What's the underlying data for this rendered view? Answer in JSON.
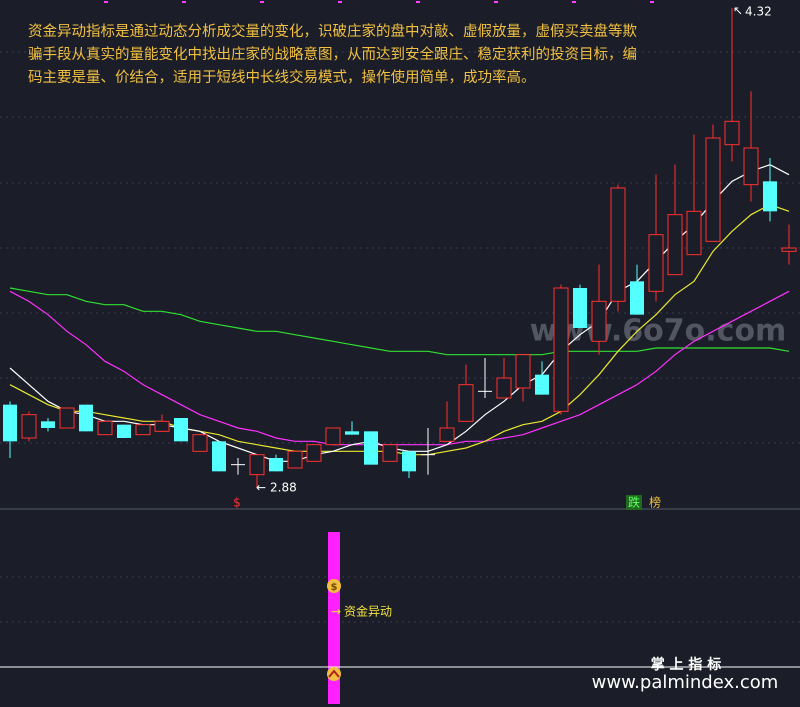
{
  "chart_data": {
    "type": "candlestick",
    "description": [
      "资金异动指标是通过动态分析成交量的变化，识破庄家的盘中对敲、虚假放量，虚假买卖盘等欺",
      "骗手段从真实的量能变化中找出庄家的战略意图，从而达到安全跟庄、稳定获利的投资目标，编",
      "码主要是量、价结合，适用于短线中长线交易模式，操作使用简单，成功率高。"
    ],
    "ylim": [
      2.82,
      4.344
    ],
    "up_color": "#ff3030",
    "down_color": "#54ffff",
    "candles": [
      [
        3.13,
        3.14,
        2.97,
        3.02
      ],
      [
        3.03,
        3.11,
        3.02,
        3.1
      ],
      [
        3.08,
        3.09,
        3.05,
        3.06
      ],
      [
        3.06,
        3.12,
        3.06,
        3.12
      ],
      [
        3.13,
        3.13,
        3.05,
        3.05
      ],
      [
        3.04,
        3.08,
        3.04,
        3.08
      ],
      [
        3.07,
        3.07,
        3.03,
        3.03
      ],
      [
        3.04,
        3.07,
        3.04,
        3.07
      ],
      [
        3.05,
        3.1,
        3.05,
        3.08
      ],
      [
        3.09,
        3.09,
        3.02,
        3.02
      ],
      [
        2.99,
        3.04,
        2.99,
        3.04
      ],
      [
        3.02,
        3.02,
        2.93,
        2.93
      ],
      [
        2.95,
        2.97,
        2.92,
        2.95
      ],
      [
        2.92,
        2.98,
        2.88,
        2.98
      ],
      [
        2.97,
        2.98,
        2.93,
        2.93
      ],
      [
        2.94,
        2.99,
        2.94,
        2.99
      ],
      [
        2.96,
        3.01,
        2.96,
        3.01
      ],
      [
        3.01,
        3.06,
        3.01,
        3.06
      ],
      [
        3.05,
        3.08,
        3.04,
        3.04
      ],
      [
        3.05,
        3.05,
        2.95,
        2.95
      ],
      [
        2.96,
        3.01,
        2.96,
        3.01
      ],
      [
        2.99,
        2.99,
        2.91,
        2.93
      ],
      [
        2.98,
        3.06,
        2.92,
        2.98
      ],
      [
        3.02,
        3.14,
        3.02,
        3.06
      ],
      [
        3.08,
        3.25,
        3.08,
        3.19
      ],
      [
        3.17,
        3.27,
        3.15,
        3.17
      ],
      [
        3.15,
        3.27,
        3.15,
        3.21
      ],
      [
        3.18,
        3.28,
        3.14,
        3.28
      ],
      [
        3.22,
        3.26,
        3.16,
        3.16
      ],
      [
        3.11,
        3.49,
        3.1,
        3.48
      ],
      [
        3.48,
        3.49,
        3.36,
        3.36
      ],
      [
        3.32,
        3.55,
        3.28,
        3.44
      ],
      [
        3.44,
        3.79,
        3.41,
        3.78
      ],
      [
        3.5,
        3.55,
        3.4,
        3.4
      ],
      [
        3.47,
        3.82,
        3.44,
        3.64
      ],
      [
        3.52,
        3.85,
        3.52,
        3.7
      ],
      [
        3.58,
        3.94,
        3.58,
        3.71
      ],
      [
        3.62,
        3.97,
        3.62,
        3.93
      ],
      [
        3.91,
        4.32,
        3.86,
        3.98
      ],
      [
        3.79,
        4.07,
        3.74,
        3.9
      ],
      [
        3.8,
        3.87,
        3.68,
        3.71
      ],
      [
        3.59,
        3.67,
        3.55,
        3.6
      ]
    ],
    "series": [
      {
        "color": "#ffffff",
        "values": [
          3.24,
          3.19,
          3.14,
          3.11,
          3.1,
          3.08,
          3.08,
          3.07,
          3.07,
          3.06,
          3.05,
          3.02,
          3.0,
          2.98,
          2.96,
          2.96,
          2.98,
          2.99,
          3.01,
          3.02,
          3.0,
          2.99,
          2.99,
          3.01,
          3.05,
          3.1,
          3.14,
          3.19,
          3.22,
          3.29,
          3.34,
          3.38,
          3.47,
          3.5,
          3.56,
          3.62,
          3.67,
          3.74,
          3.8,
          3.83,
          3.85,
          3.82
        ]
      },
      {
        "color": "#e8e830",
        "values": [
          3.19,
          3.16,
          3.13,
          3.11,
          3.11,
          3.1,
          3.09,
          3.08,
          3.08,
          3.06,
          3.05,
          3.04,
          3.02,
          3.01,
          3.0,
          2.99,
          2.99,
          2.99,
          2.99,
          2.99,
          2.99,
          2.98,
          2.98,
          2.99,
          3.0,
          3.02,
          3.05,
          3.07,
          3.08,
          3.11,
          3.16,
          3.22,
          3.29,
          3.35,
          3.4,
          3.46,
          3.5,
          3.59,
          3.65,
          3.7,
          3.73,
          3.71
        ]
      },
      {
        "color": "#ff30ff",
        "values": [
          3.47,
          3.44,
          3.4,
          3.35,
          3.31,
          3.26,
          3.23,
          3.19,
          3.16,
          3.13,
          3.1,
          3.08,
          3.06,
          3.05,
          3.03,
          3.02,
          3.02,
          3.01,
          3.01,
          3.01,
          3.01,
          3.01,
          3.01,
          3.01,
          3.02,
          3.02,
          3.03,
          3.04,
          3.06,
          3.08,
          3.1,
          3.13,
          3.16,
          3.19,
          3.23,
          3.28,
          3.32,
          3.35,
          3.38,
          3.41,
          3.44,
          3.47
        ]
      },
      {
        "color": "#30e030",
        "values": [
          3.48,
          3.47,
          3.46,
          3.46,
          3.44,
          3.43,
          3.43,
          3.41,
          3.41,
          3.4,
          3.38,
          3.37,
          3.36,
          3.35,
          3.35,
          3.34,
          3.33,
          3.32,
          3.31,
          3.3,
          3.29,
          3.29,
          3.29,
          3.28,
          3.28,
          3.28,
          3.28,
          3.28,
          3.28,
          3.29,
          3.29,
          3.29,
          3.29,
          3.29,
          3.3,
          3.3,
          3.3,
          3.3,
          3.3,
          3.3,
          3.3,
          3.29
        ]
      }
    ],
    "sell_marker": "$",
    "rank_marks": [
      "跌",
      "榜"
    ],
    "signal_icon": "$",
    "signal_label": "资金异动",
    "watermark": "www.6o7o.com",
    "brand": "掌 上 指 标",
    "url": "www.palmindex.com"
  }
}
